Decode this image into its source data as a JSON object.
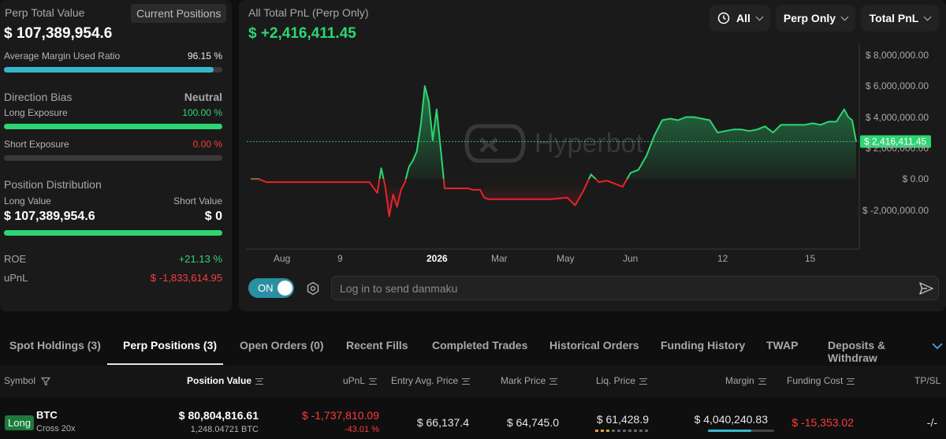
{
  "left": {
    "perp_total_label": "Perp Total Value",
    "current_positions_label": "Current Positions",
    "perp_total_value": "$ 107,389,954.6",
    "avg_margin_label": "Average Margin Used Ratio",
    "avg_margin_value": "96.15 %",
    "avg_margin_ratio": 0.9615,
    "direction_bias_label": "Direction Bias",
    "direction_bias_value": "Neutral",
    "long_exposure_label": "Long Exposure",
    "long_exposure_value": "100.00 %",
    "long_exposure_ratio": 1.0,
    "short_exposure_label": "Short Exposure",
    "short_exposure_value": "0.00 %",
    "short_exposure_ratio": 0.0,
    "position_distribution_label": "Position Distribution",
    "long_value_label": "Long Value",
    "short_value_label": "Short Value",
    "long_value": "$ 107,389,954.6",
    "short_value": "$ 0",
    "long_value_ratio": 1.0,
    "roe_label": "ROE",
    "roe_value": "+21.13 %",
    "upnl_label": "uPnL",
    "upnl_value": "$ -1,833,614.95"
  },
  "chart_header": {
    "title": "All Total PnL (Perp Only)",
    "value": "$ +2,416,411.45",
    "filter_all": "All",
    "filter_perp": "Perp Only",
    "filter_metric": "Total PnL",
    "watermark": "Hyperbot"
  },
  "chart_data": {
    "type": "area",
    "x_tick_labels": [
      "Aug",
      "9",
      "2026",
      "Mar",
      "May",
      "Jun",
      "12",
      "15"
    ],
    "y_tick_labels": [
      "$ 8,000,000.00",
      "$ 6,000,000.00",
      "$ 4,000,000.00",
      "$ 2,000,000.00",
      "$ 0.00",
      "$ -2,000,000.00"
    ],
    "ylim": [
      -3500000,
      8300000
    ],
    "current_value_label": "$ 2,416,411.45",
    "current_value": 2416411.45,
    "positive_color": "#2ed573",
    "negative_color": "#e8232a",
    "series": [
      {
        "x": [
          0,
          10,
          20,
          30,
          40,
          50,
          60,
          70,
          80,
          90,
          100,
          110,
          120,
          130,
          140,
          150,
          160,
          165,
          170,
          175,
          180,
          185,
          190,
          195,
          200,
          205,
          210,
          215,
          220,
          225,
          230,
          235,
          240,
          245,
          250,
          255,
          260,
          265,
          270,
          275,
          280,
          285,
          290,
          295,
          300,
          320,
          340,
          360,
          380,
          400,
          410,
          420,
          430,
          440,
          450,
          460,
          470,
          480,
          490,
          500,
          510,
          520,
          530,
          540,
          550,
          560,
          570,
          580,
          590,
          600,
          610,
          620,
          630,
          640,
          650,
          660,
          670,
          680,
          690,
          700,
          710,
          720,
          730,
          740,
          750,
          755,
          760,
          765
        ],
        "values": [
          0,
          0,
          -200000,
          -200000,
          -200000,
          -200000,
          -200000,
          -200000,
          -200000,
          -200000,
          -200000,
          -200000,
          -200000,
          -200000,
          -200000,
          -200000,
          -900000,
          700000,
          -500000,
          -2400000,
          -1000000,
          -1800000,
          -700000,
          -200000,
          800000,
          1200000,
          1800000,
          3500000,
          6000000,
          5000000,
          2500000,
          4500000,
          2000000,
          -600000,
          -600000,
          -600000,
          -600000,
          -600000,
          -600000,
          -600000,
          -700000,
          -700000,
          -700000,
          -1200000,
          -1300000,
          -1300000,
          -1300000,
          -1300000,
          -1300000,
          -1200000,
          -1700000,
          -800000,
          300000,
          -200000,
          -100000,
          -300000,
          -500000,
          400000,
          600000,
          1500000,
          2800000,
          3800000,
          3900000,
          3800000,
          4000000,
          4000000,
          3900000,
          3800000,
          3000000,
          3100000,
          3200000,
          3200000,
          3100000,
          3200000,
          3400000,
          3000000,
          3500000,
          3500000,
          3500000,
          3500000,
          3600000,
          3500000,
          3700000,
          3700000,
          4500000,
          4000000,
          3800000,
          2416411.45
        ]
      }
    ]
  },
  "danmaku": {
    "toggle_label": "ON",
    "input_placeholder": "Log in to send danmaku"
  },
  "tabs": [
    {
      "label": "Spot Holdings (3)"
    },
    {
      "label": "Perp Positions (3)"
    },
    {
      "label": "Open Orders (0)"
    },
    {
      "label": "Recent Fills"
    },
    {
      "label": "Completed Trades"
    },
    {
      "label": "Historical Orders"
    },
    {
      "label": "Funding History"
    },
    {
      "label": "TWAP"
    },
    {
      "label": "Deposits & Withdraw"
    }
  ],
  "table": {
    "headers": {
      "symbol": "Symbol",
      "position_value": "Position Value",
      "upnl": "uPnL",
      "entry": "Entry Avg. Price",
      "mark": "Mark Price",
      "liq": "Liq. Price",
      "margin": "Margin",
      "funding": "Funding Cost",
      "tpsl": "TP/SL"
    },
    "rows": [
      {
        "side": "Long",
        "symbol": "BTC",
        "leverage": "Cross 20x",
        "position_value": "$ 80,804,816.61",
        "size": "1,248.04721 BTC",
        "upnl": "$ -1,737,810.09",
        "upnl_pct": "-43.01 %",
        "entry": "$ 66,137.4",
        "mark": "$ 64,745.0",
        "liq": "$ 61,428.9",
        "margin": "$ 4,040,240.83",
        "funding": "$ -15,353.02",
        "tpsl": "-/-"
      }
    ]
  }
}
